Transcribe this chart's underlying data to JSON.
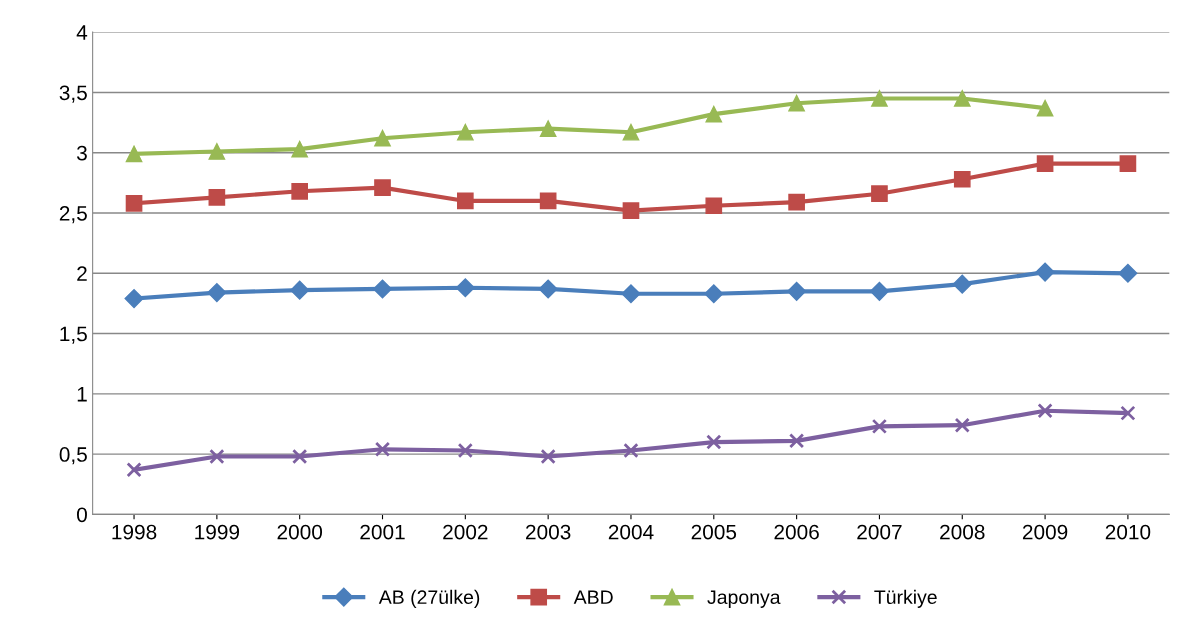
{
  "chart_data": {
    "type": "line",
    "categories": [
      "1998",
      "1999",
      "2000",
      "2001",
      "2002",
      "2003",
      "2004",
      "2005",
      "2006",
      "2007",
      "2008",
      "2009",
      "2010"
    ],
    "series": [
      {
        "name": "AB (27ülke)",
        "color": "#4a7ebb",
        "marker": "diamond",
        "values": [
          1.79,
          1.84,
          1.86,
          1.87,
          1.88,
          1.87,
          1.83,
          1.83,
          1.85,
          1.85,
          1.91,
          2.01,
          2.0
        ]
      },
      {
        "name": "ABD",
        "color": "#be4b48",
        "marker": "square",
        "values": [
          2.58,
          2.63,
          2.68,
          2.71,
          2.6,
          2.6,
          2.52,
          2.56,
          2.59,
          2.66,
          2.78,
          2.91,
          2.91
        ]
      },
      {
        "name": "Japonya",
        "color": "#98b954",
        "marker": "triangle",
        "values": [
          2.99,
          3.01,
          3.03,
          3.12,
          3.17,
          3.2,
          3.17,
          3.32,
          3.41,
          3.45,
          3.45,
          3.37,
          null
        ]
      },
      {
        "name": "Türkiye",
        "color": "#7d60a0",
        "marker": "cross",
        "values": [
          0.37,
          0.48,
          0.48,
          0.54,
          0.53,
          0.48,
          0.53,
          0.6,
          0.61,
          0.73,
          0.74,
          0.86,
          0.84
        ]
      }
    ],
    "ylim": [
      0,
      4
    ],
    "yticks": [
      0,
      {
        "value": 0.5,
        "label": "0,5"
      },
      1,
      {
        "value": 1.5,
        "label": "1,5"
      },
      2,
      {
        "value": 2.5,
        "label": "2,5"
      },
      3,
      {
        "value": 3.5,
        "label": "3,5"
      },
      4
    ],
    "grid": "y",
    "legend": "bottom",
    "line_style": "solid"
  }
}
